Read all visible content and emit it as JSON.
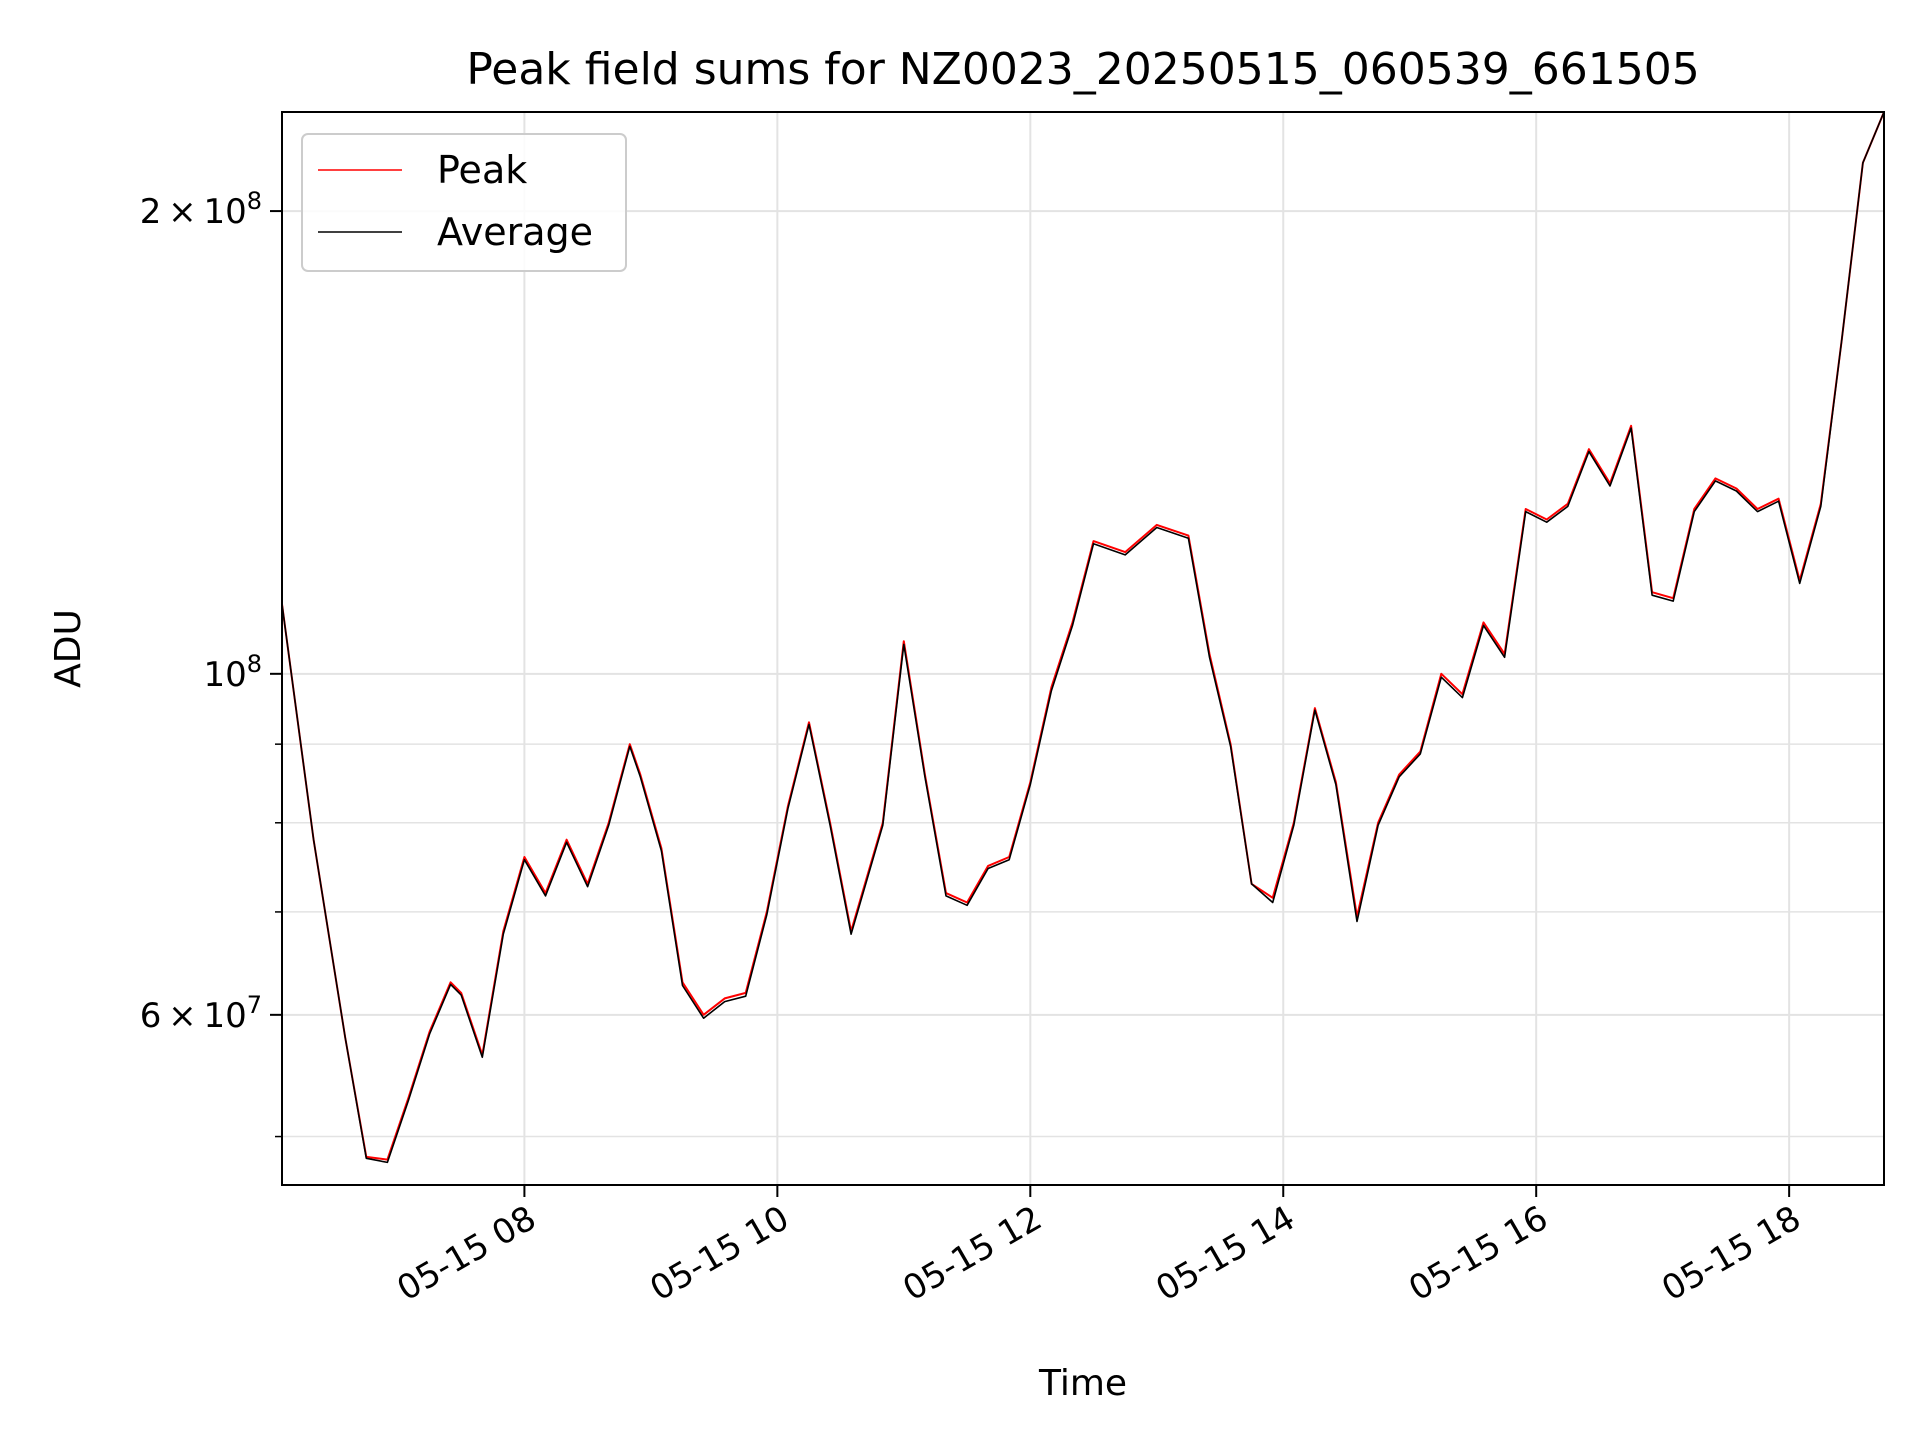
{
  "chart_data": {
    "type": "line",
    "title": "Peak field sums for NZ0023_20250515_060539_661505",
    "xlabel": "Time",
    "ylabel": "ADU",
    "y_scale": "log",
    "ylim": [
      46500000,
      232000000
    ],
    "xlim": [
      "05-15 06:05",
      "05-15 18:45"
    ],
    "grid": true,
    "legend": "top-left",
    "x_ticks": [
      "05-15 08",
      "05-15 10",
      "05-15 12",
      "05-15 14",
      "05-15 16",
      "05-15 18"
    ],
    "y_tick_labels": [
      {
        "value": 200000000,
        "mantissa": "2",
        "times": "×",
        "base": "10",
        "exp": "8"
      },
      {
        "value": 100000000,
        "mantissa": "",
        "times": "",
        "base": "10",
        "exp": "8"
      },
      {
        "value": 60000000,
        "mantissa": "6",
        "times": "×",
        "base": "10",
        "exp": "7"
      }
    ],
    "y_minor_values": [
      50000000,
      70000000,
      80000000,
      90000000,
      300000000
    ],
    "x": [
      "05-15 06:05",
      "05-15 06:20",
      "05-15 06:35",
      "05-15 06:45",
      "05-15 06:55",
      "05-15 07:05",
      "05-15 07:15",
      "05-15 07:25",
      "05-15 07:30",
      "05-15 07:40",
      "05-15 07:50",
      "05-15 08:00",
      "05-15 08:10",
      "05-15 08:20",
      "05-15 08:30",
      "05-15 08:40",
      "05-15 08:50",
      "05-15 08:55",
      "05-15 09:05",
      "05-15 09:15",
      "05-15 09:25",
      "05-15 09:35",
      "05-15 09:45",
      "05-15 09:55",
      "05-15 10:05",
      "05-15 10:15",
      "05-15 10:25",
      "05-15 10:35",
      "05-15 10:50",
      "05-15 11:00",
      "05-15 11:10",
      "05-15 11:20",
      "05-15 11:30",
      "05-15 11:40",
      "05-15 11:50",
      "05-15 12:00",
      "05-15 12:10",
      "05-15 12:20",
      "05-15 12:30",
      "05-15 12:45",
      "05-15 13:00",
      "05-15 13:15",
      "05-15 13:25",
      "05-15 13:35",
      "05-15 13:45",
      "05-15 13:55",
      "05-15 14:05",
      "05-15 14:15",
      "05-15 14:25",
      "05-15 14:35",
      "05-15 14:45",
      "05-15 14:55",
      "05-15 15:05",
      "05-15 15:15",
      "05-15 15:25",
      "05-15 15:35",
      "05-15 15:45",
      "05-15 15:55",
      "05-15 16:05",
      "05-15 16:15",
      "05-15 16:25",
      "05-15 16:35",
      "05-15 16:45",
      "05-15 16:55",
      "05-15 17:05",
      "05-15 17:15",
      "05-15 17:25",
      "05-15 17:35",
      "05-15 17:45",
      "05-15 17:55",
      "05-15 18:05",
      "05-15 18:15",
      "05-15 18:25",
      "05-15 18:35",
      "05-15 18:45"
    ],
    "series": [
      {
        "name": "Peak",
        "color": "#ff0000",
        "values": [
          111000000,
          78000000,
          58000000,
          48500000,
          48300000,
          53000000,
          58500000,
          63000000,
          62000000,
          56500000,
          68000000,
          76000000,
          72000000,
          78000000,
          73000000,
          80000000,
          90000000,
          86000000,
          77000000,
          63000000,
          60000000,
          61500000,
          62000000,
          70000000,
          82000000,
          93000000,
          80000000,
          68000000,
          80000000,
          105000000,
          86000000,
          72000000,
          71000000,
          75000000,
          76000000,
          85000000,
          98000000,
          108000000,
          122000000,
          120000000,
          125000000,
          123000000,
          103000000,
          90000000,
          73000000,
          71500000,
          80000000,
          95000000,
          85000000,
          69500000,
          80000000,
          86000000,
          89000000,
          100000000,
          97000000,
          108000000,
          103000000,
          128000000,
          126000000,
          129000000,
          140000000,
          133000000,
          145000000,
          113000000,
          112000000,
          128000000,
          134000000,
          132000000,
          128000000,
          130000000,
          115000000,
          129000000,
          165000000,
          215000000,
          232000000
        ]
      },
      {
        "name": "Average",
        "color": "#000000",
        "values": [
          111000000,
          78000000,
          58000000,
          48400000,
          48100000,
          52800000,
          58300000,
          62800000,
          61800000,
          56300000,
          67700000,
          75700000,
          71700000,
          77700000,
          72700000,
          79700000,
          89700000,
          85700000,
          76700000,
          62700000,
          59700000,
          61200000,
          61700000,
          69700000,
          81700000,
          92700000,
          79700000,
          67700000,
          79700000,
          104500000,
          85700000,
          71700000,
          70700000,
          74700000,
          75700000,
          84700000,
          97500000,
          107500000,
          121500000,
          119500000,
          124500000,
          122500000,
          102500000,
          89700000,
          73000000,
          71000000,
          79700000,
          94700000,
          84700000,
          69000000,
          79700000,
          85700000,
          88700000,
          99500000,
          96500000,
          107500000,
          102500000,
          127500000,
          125500000,
          128500000,
          139500000,
          132500000,
          144500000,
          112500000,
          111500000,
          127500000,
          133500000,
          131500000,
          127500000,
          129500000,
          114500000,
          128500000,
          165000000,
          215000000,
          232000000
        ]
      }
    ]
  }
}
